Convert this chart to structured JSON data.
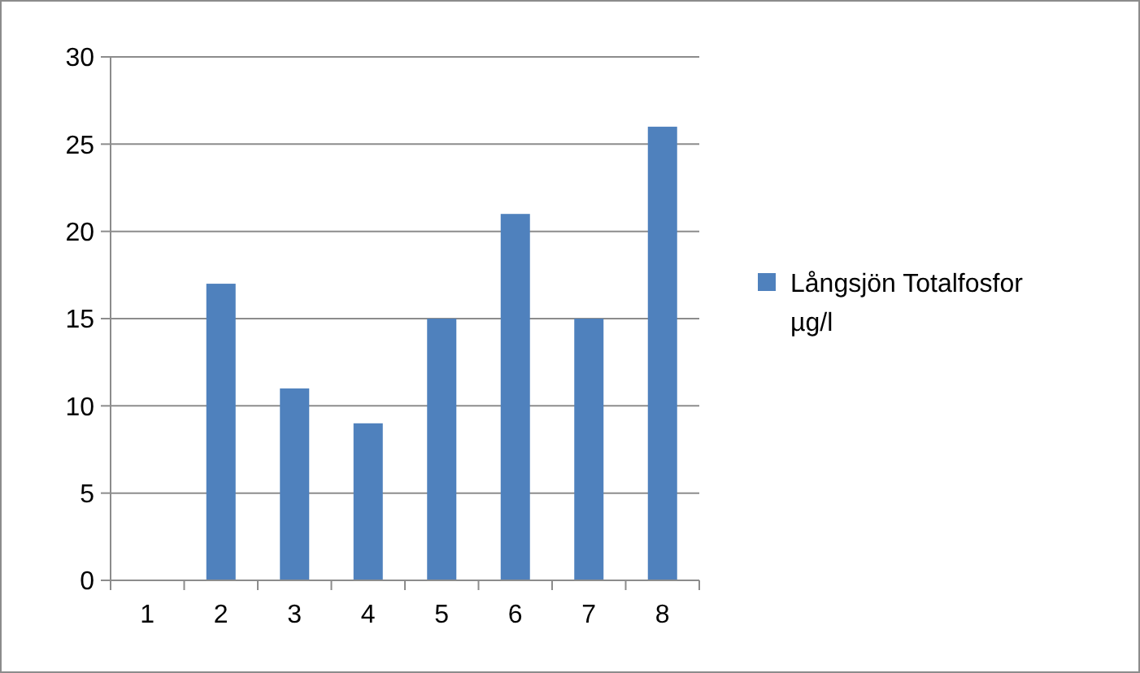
{
  "chart_data": {
    "type": "bar",
    "categories": [
      "1",
      "2",
      "3",
      "4",
      "5",
      "6",
      "7",
      "8"
    ],
    "series": [
      {
        "name": "Långsjön Totalfosfor µg/l",
        "color": "#4f81bd",
        "values": [
          null,
          17,
          11,
          9,
          15,
          21,
          15,
          26
        ]
      }
    ],
    "ylim": [
      0,
      30
    ],
    "yticks": [
      0,
      5,
      10,
      15,
      20,
      25,
      30
    ],
    "grid": "y",
    "legend": "right"
  }
}
